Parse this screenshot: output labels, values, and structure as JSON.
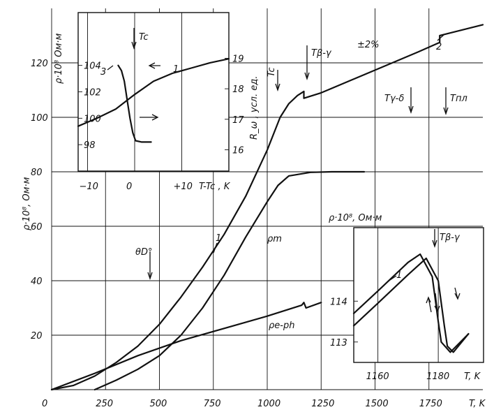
{
  "chart_data": [
    {
      "type": "line",
      "xlabel": "T, K",
      "ylabel": "ρ·10⁸, Ом·м",
      "ylabel_right": "R_ω , усл. ед.",
      "xlim": [
        0,
        2000
      ],
      "ylim": [
        0,
        140
      ],
      "x_ticks": [
        "0",
        "250",
        "500",
        "750",
        "1000",
        "1250",
        "1500",
        "1750"
      ],
      "x_tick_values": [
        0,
        250,
        500,
        750,
        1000,
        1250,
        1500,
        1750
      ],
      "y_ticks": [
        "20",
        "40",
        "60",
        "80",
        "100",
        "120"
      ],
      "y_tick_values": [
        20,
        40,
        60,
        80,
        100,
        120
      ],
      "grid": true,
      "series": [
        {
          "name": "1",
          "x": [
            0,
            100,
            200,
            300,
            400,
            500,
            600,
            700,
            800,
            900,
            1000,
            1060,
            1100,
            1140,
            1170,
            1170,
            1250,
            1400,
            1550,
            1700,
            1800,
            1800,
            2000
          ],
          "y": [
            0,
            1.5,
            5,
            10,
            16,
            24,
            34,
            45,
            57,
            71,
            88,
            100,
            105,
            108,
            109.5,
            107,
            109,
            114,
            119,
            124,
            127.5,
            130,
            134
          ]
        },
        {
          "name": "ρm",
          "x": [
            200,
            300,
            400,
            500,
            600,
            700,
            800,
            900,
            1000,
            1050,
            1100,
            1200,
            1300,
            1450
          ],
          "y": [
            0,
            3.5,
            7.5,
            12.5,
            20,
            30,
            42,
            56,
            69,
            75,
            78.5,
            79.8,
            80,
            80
          ]
        },
        {
          "name": "ρe-ph",
          "x": [
            0,
            200,
            400,
            600,
            800,
            1000,
            1160,
            1170,
            1180,
            1250
          ],
          "y": [
            0,
            6,
            12.5,
            18,
            22.5,
            27,
            31,
            32,
            30,
            32
          ]
        }
      ],
      "annotations": [
        "Tc",
        "Tβ-γ",
        "Tγ-δ",
        "Tпл",
        "θD°",
        "±2%",
        "1",
        "2",
        "ρm",
        "ρe-ph"
      ]
    },
    {
      "type": "line",
      "xlabel": "T-Tc , K",
      "ylabel": "ρ·10⁸ Ом·м",
      "xlim": [
        -12,
        20
      ],
      "ylim": [
        96,
        108
      ],
      "x_ticks": [
        "−10",
        "0",
        "+10"
      ],
      "x_tick_values": [
        -10,
        0,
        10
      ],
      "y_ticks": [
        "98",
        "100",
        "102",
        "104"
      ],
      "y_tick_values": [
        98,
        100,
        102,
        104
      ],
      "y2_ticks": [
        "16",
        "17",
        "18",
        "19"
      ],
      "y2_tick_values": [
        16,
        17,
        18,
        19
      ],
      "ylim_right": [
        15.3,
        20.5
      ],
      "series": [
        {
          "name": "1",
          "x": [
            -12,
            -8,
            -4,
            0,
            4,
            8,
            12,
            16,
            20
          ],
          "y": [
            99.4,
            100.0,
            100.7,
            101.8,
            102.8,
            103.4,
            103.8,
            104.2,
            104.5
          ]
        },
        {
          "name": "3",
          "x": [
            -3.5,
            -2.8,
            -2.2,
            -1.6,
            -1.0,
            -0.4,
            0.2,
            1.5,
            3.5
          ],
          "y": [
            104.0,
            103.6,
            102.8,
            101.4,
            100.0,
            98.9,
            98.3,
            98.2,
            98.2
          ]
        }
      ],
      "annotations": [
        "Tc",
        "1",
        "3"
      ]
    },
    {
      "type": "line",
      "xlabel": "T, K",
      "ylabel": "ρ·10⁸, Ом·м",
      "xlim": [
        1152,
        1195
      ],
      "ylim": [
        112.5,
        115.8
      ],
      "x_ticks": [
        "1160",
        "1180"
      ],
      "x_tick_values": [
        1160,
        1180
      ],
      "y_ticks": [
        "113",
        "114"
      ],
      "y_tick_values": [
        113,
        114
      ],
      "series": [
        {
          "name": "1",
          "x": [
            1152,
            1160,
            1170,
            1174,
            1178,
            1180,
            1181,
            1184,
            1190
          ],
          "y": [
            113.7,
            114.25,
            114.95,
            115.15,
            114.6,
            113.5,
            113.0,
            112.75,
            113.2
          ]
        },
        {
          "name": "",
          "x": [
            1152,
            1160,
            1170,
            1176,
            1180,
            1182,
            1183,
            1185,
            1190
          ],
          "y": [
            113.4,
            113.95,
            114.65,
            115.05,
            114.5,
            113.4,
            112.9,
            112.75,
            113.2
          ]
        }
      ],
      "annotations": [
        "Tβ-γ",
        "1"
      ]
    }
  ]
}
